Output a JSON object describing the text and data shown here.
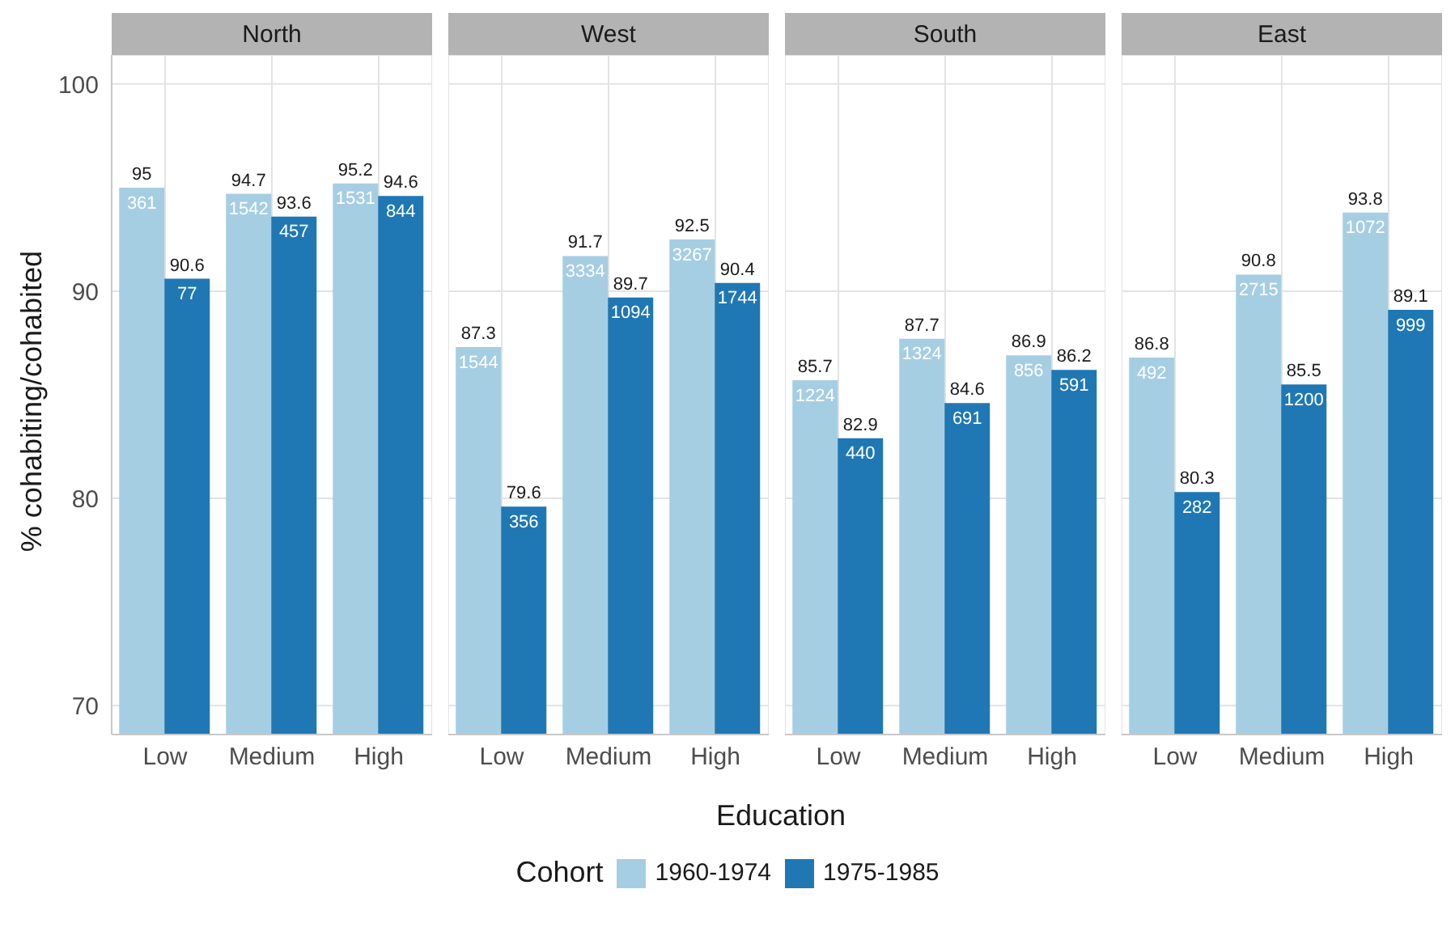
{
  "chart_data": [
    {
      "type": "bar",
      "title": "North",
      "ylabel": "% cohabiting/cohabited",
      "categories": [
        "Low",
        "Medium",
        "High"
      ],
      "ylim": [
        68.6,
        101.4
      ],
      "yticks": [
        70,
        80,
        90,
        100
      ],
      "grid": true,
      "data_labels": true,
      "legend": "bottom",
      "legend_title": "Cohort",
      "series": [
        {
          "name": "1960-1974",
          "color": "#a6cee3",
          "values": [
            95,
            94.7,
            95.2
          ]
        },
        {
          "name": "1975-1985",
          "color": "#1f78b4",
          "values": [
            90.6,
            93.6,
            94.6
          ]
        }
      ],
      "annotations": [
        {
          "text": "361",
          "x": "Low",
          "y": 95
        },
        {
          "text": "1542",
          "x": "Medium",
          "y": 94.7
        },
        {
          "text": "1531",
          "x": "High",
          "y": 95.2
        },
        {
          "text": "77",
          "x": "Low",
          "y": 90.6
        },
        {
          "text": "457",
          "x": "Medium",
          "y": 93.6
        },
        {
          "text": "844",
          "x": "High",
          "y": 94.6
        }
      ]
    },
    {
      "type": "bar",
      "title": "West",
      "xlabel": "Education",
      "categories": [
        "Low",
        "Medium",
        "High"
      ],
      "ylim": [
        68.6,
        101.4
      ],
      "yticks": [
        70,
        80,
        90,
        100
      ],
      "grid": true,
      "data_labels": true,
      "tick_labels": "x",
      "series": [
        {
          "color": "#a6cee3",
          "values": [
            87.3,
            91.7,
            92.5
          ]
        },
        {
          "color": "#1f78b4",
          "values": [
            79.6,
            89.7,
            90.4
          ]
        }
      ],
      "annotations": [
        {
          "text": "1544",
          "x": "Low",
          "y": 87.3
        },
        {
          "text": "3334",
          "x": "Medium",
          "y": 91.7
        },
        {
          "text": "3267",
          "x": "High",
          "y": 92.5
        },
        {
          "text": "356",
          "x": "Low",
          "y": 79.6
        },
        {
          "text": "1094",
          "x": "Medium",
          "y": 89.7
        },
        {
          "text": "1744",
          "x": "High",
          "y": 90.4
        }
      ]
    },
    {
      "type": "bar",
      "title": "South",
      "categories": [
        "Low",
        "Medium",
        "High"
      ],
      "ylim": [
        68.6,
        101.4
      ],
      "yticks": [
        70,
        80,
        90,
        100
      ],
      "grid": true,
      "data_labels": true,
      "tick_labels": "x",
      "series": [
        {
          "color": "#a6cee3",
          "values": [
            85.7,
            87.7,
            86.9
          ]
        },
        {
          "color": "#1f78b4",
          "values": [
            82.9,
            84.6,
            86.2
          ]
        }
      ],
      "annotations": [
        {
          "text": "1224",
          "x": "Low",
          "y": 85.7
        },
        {
          "text": "1324",
          "x": "Medium",
          "y": 87.7
        },
        {
          "text": "856",
          "x": "High",
          "y": 86.9
        },
        {
          "text": "440",
          "x": "Low",
          "y": 82.9
        },
        {
          "text": "691",
          "x": "Medium",
          "y": 84.6
        },
        {
          "text": "591",
          "x": "High",
          "y": 86.2
        }
      ]
    },
    {
      "type": "bar",
      "title": "East",
      "categories": [
        "Low",
        "Medium",
        "High"
      ],
      "ylim": [
        68.6,
        101.4
      ],
      "yticks": [
        70,
        80,
        90,
        100
      ],
      "grid": true,
      "data_labels": true,
      "tick_labels": "x",
      "series": [
        {
          "color": "#a6cee3",
          "values": [
            86.8,
            90.8,
            93.8
          ]
        },
        {
          "color": "#1f78b4",
          "values": [
            80.3,
            85.5,
            89.1
          ]
        }
      ],
      "annotations": [
        {
          "text": "492",
          "x": "Low",
          "y": 86.8
        },
        {
          "text": "2715",
          "x": "Medium",
          "y": 90.8
        },
        {
          "text": "1072",
          "x": "High",
          "y": 93.8
        },
        {
          "text": "282",
          "x": "Low",
          "y": 80.3
        },
        {
          "text": "1200",
          "x": "Medium",
          "y": 85.5
        },
        {
          "text": "999",
          "x": "High",
          "y": 89.1
        }
      ]
    }
  ]
}
